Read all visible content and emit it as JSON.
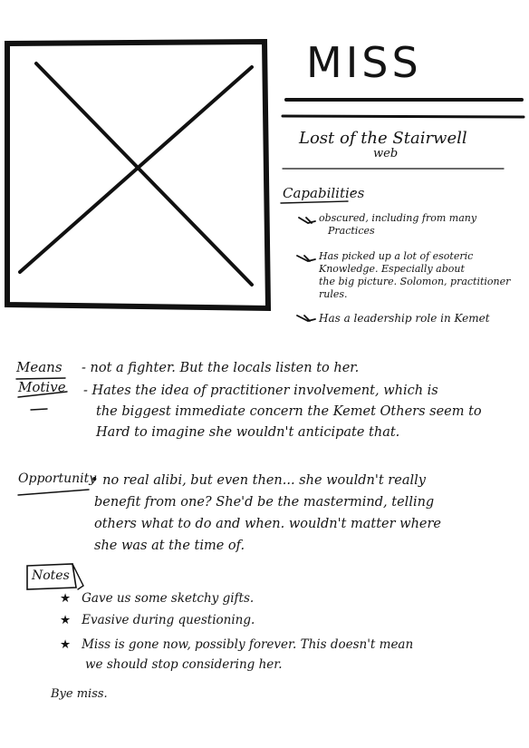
{
  "character": {
    "name": "MISS",
    "subtitle_line1": "Lost of the Stairwell",
    "subtitle_line2": "web"
  },
  "capabilities": {
    "heading": "Capabilities",
    "items": [
      [
        "obscured, including from many",
        "Practices"
      ],
      [
        "Has picked up a lot of esoteric",
        "Knowledge. Especially about",
        "the big picture. Solomon, practitioner",
        "rules."
      ],
      [
        "Has a leadership role in Kemet"
      ]
    ]
  },
  "mmo": {
    "means_label": "Means",
    "means_text": "- not a fighter. But the locals listen to her.",
    "motive_label": "Motive",
    "motive_lines": [
      "- Hates the idea of practitioner involvement, which is",
      "the biggest immediate concern the Kemet Others seem to",
      "Hard to imagine she wouldn't anticipate that."
    ],
    "opportunity_label": "Opportunity",
    "opportunity_lines": [
      "• no real alibi, but even then... she wouldn't really",
      "benefit from one? She'd be the mastermind, telling",
      "others what to do and when. wouldn't matter where",
      "she was at the time of."
    ]
  },
  "notes": {
    "heading": "Notes",
    "items": [
      [
        "Gave us some sketchy gifts."
      ],
      [
        "Evasive during questioning."
      ],
      [
        "Miss is gone now, possibly forever. This doesn't mean",
        "we should stop considering her."
      ]
    ],
    "star": "★"
  },
  "signoff": "Bye miss."
}
